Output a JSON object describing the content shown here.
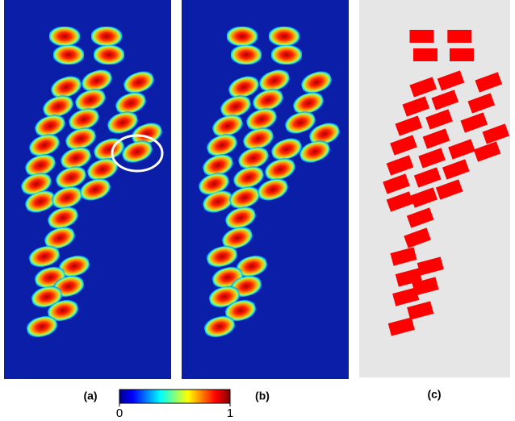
{
  "panels": [
    "(a)",
    "(b)",
    "(c)"
  ],
  "colorbar": {
    "range": [
      0,
      1
    ],
    "ticks": [
      0,
      1
    ]
  }
}
